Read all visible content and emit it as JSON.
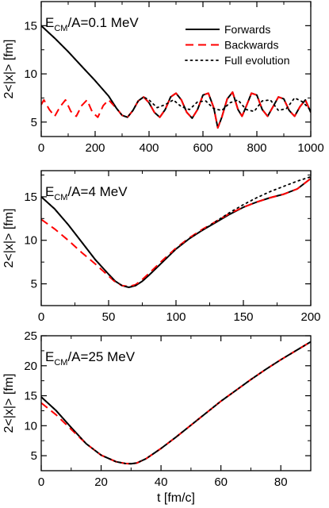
{
  "chart_data": [
    {
      "type": "line",
      "annotation": {
        "main": "E",
        "sub": "CM",
        "rest": "/A=0.1 MeV"
      },
      "ylabel": "2<|x|> [fm]",
      "xlabel": "",
      "xlim": [
        0,
        1000
      ],
      "ylim": [
        3.5,
        17.5
      ],
      "xticks": [
        0,
        200,
        400,
        600,
        800,
        1000
      ],
      "yticks": [
        5,
        10,
        15
      ],
      "legend": {
        "position": "top-right",
        "entries": [
          "Forwards",
          "Backwards",
          "Full evolution"
        ]
      },
      "series": [
        {
          "name": "Forwards",
          "style": "solid",
          "color": "#000000",
          "x": [
            0,
            50,
            100,
            150,
            200,
            250,
            280,
            300,
            320,
            340,
            360,
            380,
            400,
            420,
            440,
            460,
            480,
            500,
            520,
            540,
            560,
            580,
            600,
            620,
            640,
            655,
            670,
            690,
            710,
            730,
            745,
            760,
            780,
            800,
            820,
            840,
            860,
            880,
            900,
            920,
            940,
            960,
            980,
            1000
          ],
          "y": [
            15.0,
            13.7,
            12.3,
            10.8,
            9.3,
            7.7,
            6.4,
            5.7,
            5.5,
            6.2,
            7.2,
            7.6,
            7.0,
            6.0,
            5.5,
            6.3,
            7.6,
            8.0,
            7.3,
            6.0,
            5.4,
            6.3,
            7.8,
            8.0,
            6.5,
            4.4,
            5.5,
            7.4,
            8.1,
            6.3,
            5.6,
            6.6,
            8.0,
            7.8,
            6.3,
            5.6,
            6.6,
            7.6,
            7.4,
            6.2,
            5.6,
            6.6,
            7.3,
            6.0
          ]
        },
        {
          "name": "Backwards",
          "style": "dashed",
          "color": "#ff0000",
          "x": [
            0,
            10,
            30,
            50,
            70,
            90,
            110,
            130,
            150,
            170,
            190,
            210,
            230,
            250,
            280,
            300,
            320,
            340,
            360,
            380,
            400,
            420,
            440,
            460,
            480,
            500,
            520,
            540,
            560,
            580,
            600,
            620,
            640,
            655,
            670,
            690,
            710,
            730,
            745,
            760,
            780,
            800,
            820,
            840,
            860,
            880,
            900,
            920,
            940,
            960,
            980,
            1000
          ],
          "y": [
            6.8,
            7.3,
            6.3,
            5.6,
            6.6,
            7.3,
            6.1,
            5.6,
            6.7,
            7.3,
            6.0,
            5.5,
            6.7,
            7.3,
            6.4,
            5.7,
            5.5,
            6.2,
            7.2,
            7.6,
            7.0,
            6.0,
            5.5,
            6.3,
            7.6,
            8.0,
            7.3,
            6.0,
            5.4,
            6.3,
            7.8,
            8.0,
            6.5,
            4.4,
            5.5,
            7.4,
            8.1,
            6.3,
            5.6,
            6.6,
            8.0,
            7.8,
            6.3,
            5.6,
            6.6,
            7.6,
            7.4,
            6.2,
            5.6,
            6.6,
            7.3,
            6.0
          ]
        },
        {
          "name": "Full evolution",
          "style": "dotted",
          "color": "#000000",
          "x": [
            0,
            50,
            100,
            150,
            200,
            250,
            280,
            300,
            320,
            340,
            360,
            380,
            400,
            430,
            460,
            490,
            520,
            550,
            580,
            610,
            640,
            670,
            700,
            730,
            760,
            790,
            820,
            850,
            880,
            910,
            940,
            970,
            1000
          ],
          "y": [
            15.0,
            13.7,
            12.3,
            10.8,
            9.3,
            7.7,
            6.4,
            5.7,
            5.5,
            6.2,
            7.2,
            7.6,
            7.3,
            6.5,
            6.8,
            7.3,
            6.6,
            6.3,
            7.1,
            7.2,
            6.4,
            6.2,
            7.0,
            7.3,
            6.3,
            6.1,
            7.2,
            7.3,
            6.2,
            6.4,
            7.5,
            7.1,
            6.2
          ]
        }
      ]
    },
    {
      "type": "line",
      "annotation": {
        "main": "E",
        "sub": "CM",
        "rest": "/A=4 MeV"
      },
      "ylabel": "2<|x|> [fm]",
      "xlabel": "",
      "xlim": [
        0,
        200
      ],
      "ylim": [
        2.5,
        18
      ],
      "xticks": [
        0,
        50,
        100,
        150,
        200
      ],
      "yticks": [
        5,
        10,
        15
      ],
      "series": [
        {
          "name": "Forwards",
          "style": "solid",
          "color": "#000000",
          "x": [
            0,
            10,
            20,
            30,
            40,
            50,
            55,
            60,
            65,
            70,
            75,
            80,
            90,
            100,
            110,
            120,
            130,
            140,
            150,
            160,
            170,
            180,
            190,
            200
          ],
          "y": [
            15.0,
            13.6,
            11.8,
            9.8,
            7.8,
            6.1,
            5.3,
            4.8,
            4.6,
            4.8,
            5.3,
            6.0,
            7.5,
            9.0,
            10.2,
            11.2,
            12.1,
            13.0,
            13.8,
            14.4,
            14.9,
            15.3,
            15.9,
            17.1
          ]
        },
        {
          "name": "Backwards",
          "style": "dashed",
          "color": "#ff0000",
          "x": [
            0,
            10,
            20,
            30,
            40,
            50,
            55,
            60,
            65,
            70,
            75,
            80,
            90,
            100,
            110,
            120,
            130,
            140,
            150,
            160,
            170,
            180,
            190,
            200
          ],
          "y": [
            12.4,
            11.3,
            10.0,
            8.6,
            7.3,
            5.9,
            5.2,
            4.8,
            4.7,
            4.9,
            5.5,
            6.2,
            7.7,
            9.1,
            10.3,
            11.3,
            12.2,
            13.1,
            13.8,
            14.4,
            14.9,
            15.3,
            15.9,
            17.1
          ]
        },
        {
          "name": "Full evolution",
          "style": "dotted",
          "color": "#000000",
          "x": [
            0,
            10,
            20,
            30,
            40,
            50,
            55,
            60,
            65,
            70,
            75,
            80,
            90,
            100,
            110,
            120,
            130,
            140,
            150,
            160,
            170,
            180,
            190,
            200
          ],
          "y": [
            15.0,
            13.6,
            11.8,
            9.8,
            7.8,
            6.1,
            5.3,
            4.8,
            4.6,
            4.8,
            5.3,
            6.0,
            7.5,
            9.0,
            10.2,
            11.2,
            12.2,
            13.2,
            14.1,
            14.9,
            15.6,
            16.2,
            16.8,
            17.3
          ]
        }
      ]
    },
    {
      "type": "line",
      "annotation": {
        "main": "E",
        "sub": "CM",
        "rest": "/A=25 MeV"
      },
      "ylabel": "2<|x|> [fm]",
      "xlabel": "t [fm/c]",
      "xlim": [
        0,
        90
      ],
      "ylim": [
        2.5,
        25
      ],
      "xticks": [
        0,
        20,
        40,
        60,
        80
      ],
      "yticks": [
        5,
        10,
        15,
        20,
        25
      ],
      "series": [
        {
          "name": "Forwards",
          "style": "solid",
          "color": "#000000",
          "x": [
            0,
            5,
            10,
            15,
            20,
            25,
            28,
            30,
            32,
            35,
            40,
            45,
            50,
            55,
            60,
            65,
            70,
            75,
            80,
            85,
            90
          ],
          "y": [
            14.8,
            12.5,
            9.7,
            7.0,
            5.1,
            4.0,
            3.7,
            3.65,
            3.8,
            4.5,
            6.2,
            8.1,
            10.1,
            12.1,
            14.1,
            15.9,
            17.7,
            19.4,
            21.0,
            22.5,
            24.0
          ]
        },
        {
          "name": "Backwards",
          "style": "dashed",
          "color": "#ff0000",
          "x": [
            0,
            5,
            10,
            15,
            20,
            25,
            28,
            30,
            32,
            35,
            40,
            45,
            50,
            55,
            60,
            65,
            70,
            75,
            80,
            85,
            90
          ],
          "y": [
            13.8,
            11.8,
            9.4,
            7.0,
            5.1,
            4.0,
            3.7,
            3.65,
            3.8,
            4.5,
            6.2,
            8.1,
            10.1,
            12.1,
            14.1,
            15.9,
            17.7,
            19.4,
            21.0,
            22.5,
            24.0
          ]
        },
        {
          "name": "Full evolution",
          "style": "dotted",
          "color": "#000000",
          "x": [
            0,
            5,
            10,
            15,
            20,
            25,
            28,
            30,
            32,
            35,
            40,
            45,
            50,
            55,
            60,
            65,
            70,
            75,
            80,
            85,
            90
          ],
          "y": [
            14.8,
            12.5,
            9.7,
            7.0,
            5.1,
            4.0,
            3.7,
            3.65,
            3.8,
            4.5,
            6.2,
            8.1,
            10.1,
            12.1,
            14.1,
            15.9,
            17.7,
            19.4,
            21.0,
            22.5,
            24.0
          ]
        }
      ]
    }
  ]
}
